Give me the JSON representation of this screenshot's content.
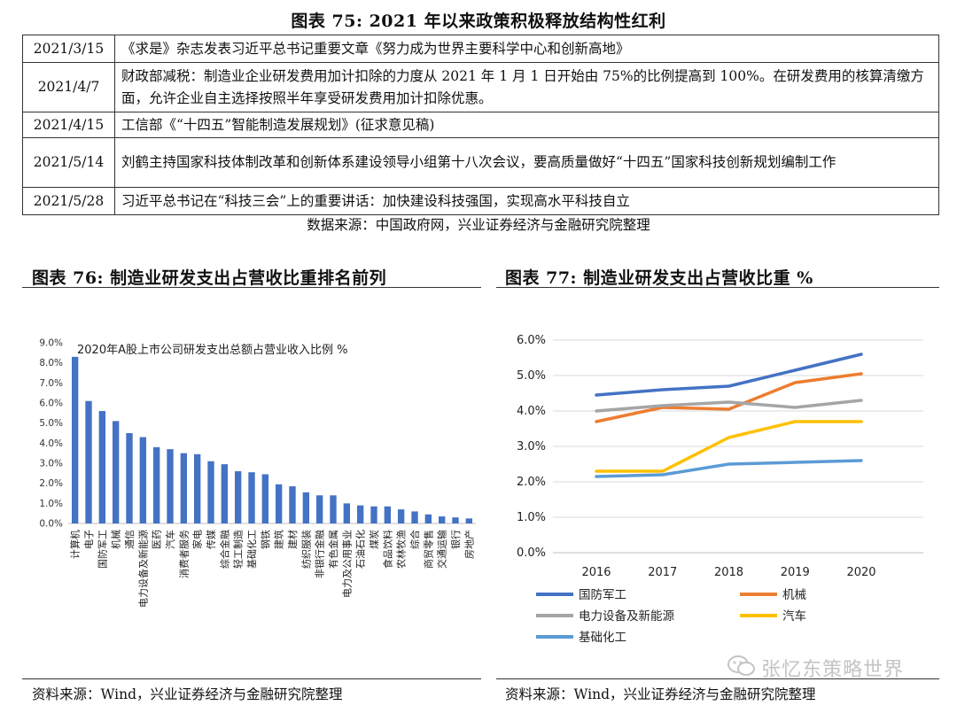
{
  "fig75": {
    "title": "图表 75:  2021 年以来政策积极释放结构性红利",
    "rows": [
      {
        "date": "2021/3/15",
        "text": "《求是》杂志发表习近平总书记重要文章《努力成为世界主要科学中心和创新高地》"
      },
      {
        "date": "2021/4/7",
        "text": "财政部减税：制造业企业研发费用加计扣除的力度从 2021 年 1 月 1 日开始由 75%的比例提高到 100%。在研发费用的核算清缴方面，允许企业自主选择按照半年享受研发费用加计扣除优惠。"
      },
      {
        "date": "2021/4/15",
        "text": "工信部《“十四五”智能制造发展规划》(征求意见稿)"
      },
      {
        "date": "2021/5/14",
        "text": "刘鹤主持国家科技体制改革和创新体系建设领导小组第十八次会议，要高质量做好“十四五”国家科技创新规划编制工作"
      },
      {
        "date": "2021/5/28",
        "text": "习近平总书记在“科技三会”上的重要讲话：加快建设科技强国，实现高水平科技自立"
      }
    ],
    "source": "数据来源：中国政府网，兴业证券经济与金融研究院整理"
  },
  "fig76": {
    "title": "图表 76:  制造业研发支出占营收比重排名前列",
    "source": "资料来源：Wind，兴业证券经济与金融研究院整理"
  },
  "fig77": {
    "title": "图表 77:  制造业研发支出占营收比重  %",
    "source": "资料来源：Wind，兴业证券经济与金融研究院整理"
  },
  "watermark": "张忆东策略世界",
  "chart_data": [
    {
      "type": "bar",
      "title": "2020年A股上市公司研发支出总额占营业收入比例  %",
      "categories": [
        "计算机",
        "电子",
        "国防军工",
        "机械",
        "通信",
        "电力设备及新能源",
        "医药",
        "汽车",
        "消费者服务",
        "家电",
        "传媒",
        "综合金融",
        "轻工制造",
        "基础化工",
        "钢铁",
        "建筑",
        "建材",
        "纺织服装",
        "非银行金融",
        "有色金属",
        "电力及公用事业",
        "石油石化",
        "煤炭",
        "食品饮料",
        "农林牧渔",
        "综合",
        "商贸零售",
        "交通运输",
        "银行",
        "房地产"
      ],
      "values": [
        8.3,
        6.1,
        5.6,
        5.1,
        4.5,
        4.3,
        3.8,
        3.7,
        3.5,
        3.45,
        3.1,
        2.95,
        2.6,
        2.55,
        2.45,
        1.95,
        1.85,
        1.55,
        1.4,
        1.4,
        1.0,
        0.9,
        0.85,
        0.85,
        0.7,
        0.6,
        0.45,
        0.35,
        0.3,
        0.25
      ],
      "ylim": [
        0,
        9
      ],
      "yticks": [
        "0.0%",
        "1.0%",
        "2.0%",
        "3.0%",
        "4.0%",
        "5.0%",
        "6.0%",
        "7.0%",
        "8.0%",
        "9.0%"
      ],
      "color": "#4472C4"
    },
    {
      "type": "line",
      "x": [
        "2016",
        "2017",
        "2018",
        "2019",
        "2020"
      ],
      "ylim": [
        0,
        6
      ],
      "yticks": [
        "0.0%",
        "1.0%",
        "2.0%",
        "3.0%",
        "4.0%",
        "5.0%",
        "6.0%"
      ],
      "legend_position": "bottom",
      "series": [
        {
          "name": "国防军工",
          "color": "#4472C4",
          "values": [
            4.45,
            4.6,
            4.7,
            5.15,
            5.6
          ]
        },
        {
          "name": "机械",
          "color": "#ED7D31",
          "values": [
            3.7,
            4.1,
            4.05,
            4.8,
            5.05
          ]
        },
        {
          "name": "电力设备及新能源",
          "color": "#A5A5A5",
          "values": [
            4.0,
            4.15,
            4.25,
            4.1,
            4.3
          ]
        },
        {
          "name": "汽车",
          "color": "#FFC000",
          "values": [
            2.3,
            2.3,
            3.25,
            3.7,
            3.7
          ]
        },
        {
          "name": "基础化工",
          "color": "#5B9BD5",
          "values": [
            2.15,
            2.2,
            2.5,
            2.55,
            2.6
          ]
        }
      ]
    }
  ]
}
